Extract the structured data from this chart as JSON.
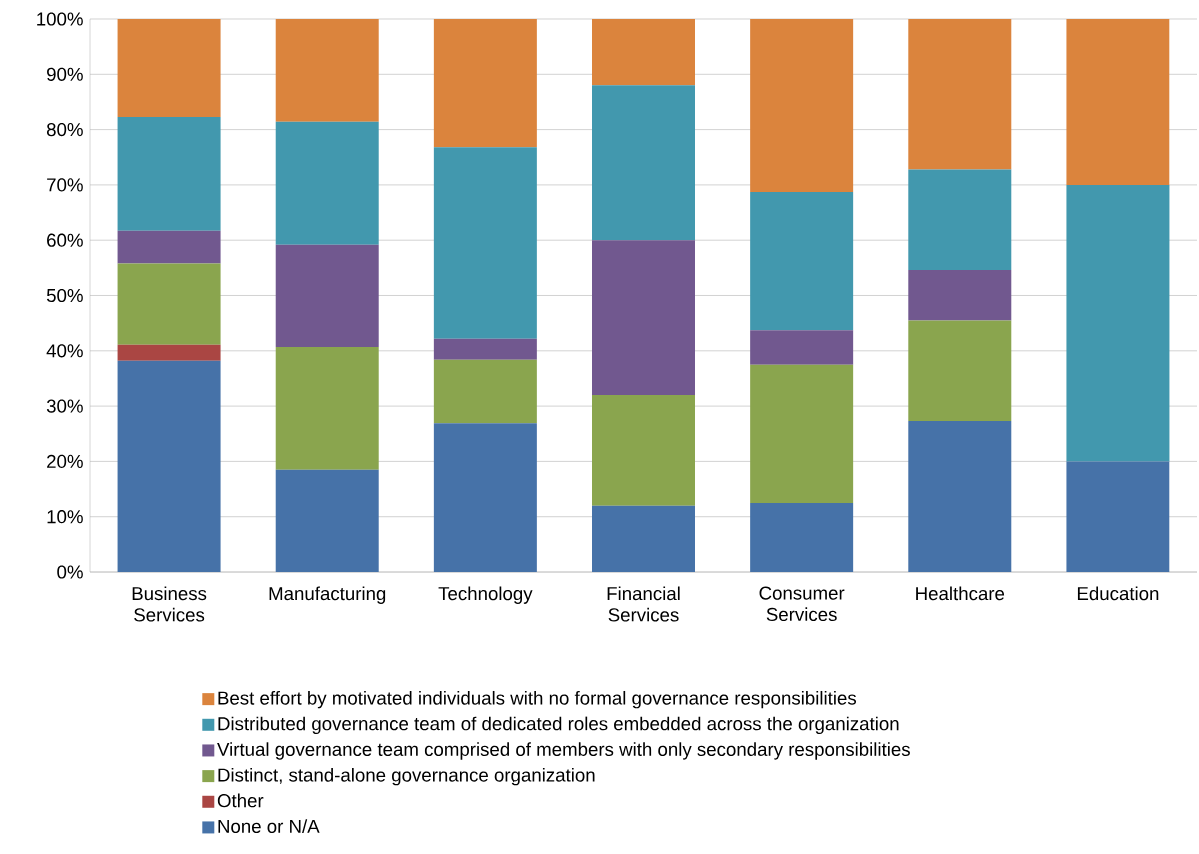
{
  "chart_data": {
    "type": "bar",
    "stacked": true,
    "categories": [
      "Business Services",
      "Manufacturing",
      "Technology",
      "Financial Services",
      "Consumer Services",
      "Healthcare",
      "Education"
    ],
    "series": [
      {
        "name": "None or N/A",
        "color": "#4672a8",
        "values": [
          38.2,
          18.5,
          26.9,
          12,
          12.5,
          27.3,
          20
        ]
      },
      {
        "name": "Other",
        "color": "#aa4643",
        "values": [
          2.9,
          0,
          0,
          0,
          0,
          0,
          0
        ]
      },
      {
        "name": "Distinct, stand-alone governance organization",
        "color": "#8aa54e",
        "values": [
          14.7,
          22.2,
          11.5,
          20,
          25,
          18.2,
          0
        ]
      },
      {
        "name": "Virtual governance team comprised of members with only secondary responsibilities",
        "color": "#71588f",
        "values": [
          5.9,
          18.5,
          3.8,
          28,
          6.2,
          9.1,
          0
        ]
      },
      {
        "name": "Distributed governance team of dedicated roles embedded across the organization",
        "color": "#4298ae",
        "values": [
          20.6,
          22.2,
          34.6,
          28,
          25,
          18.2,
          50
        ]
      },
      {
        "name": "Best effort by motivated individuals with no formal governance responsibilities",
        "color": "#db843d",
        "values": [
          17.7,
          18.6,
          23.2,
          12,
          31.3,
          27.2,
          30
        ]
      }
    ],
    "ylim": [
      0,
      100
    ],
    "yticks": [
      {
        "value": 0,
        "label": "0%"
      },
      {
        "value": 10,
        "label": "10%"
      },
      {
        "value": 20,
        "label": "20%"
      },
      {
        "value": 30,
        "label": "30%"
      },
      {
        "value": 40,
        "label": "40%"
      },
      {
        "value": 50,
        "label": "50%"
      },
      {
        "value": 60,
        "label": "60%"
      },
      {
        "value": 70,
        "label": "70%"
      },
      {
        "value": 80,
        "label": "80%"
      },
      {
        "value": 90,
        "label": "90%"
      },
      {
        "value": 100,
        "label": "100%"
      }
    ],
    "grid": "y",
    "legend": "bottom"
  }
}
